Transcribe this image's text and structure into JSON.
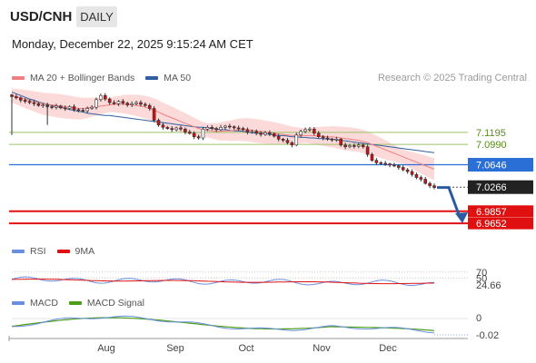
{
  "header": {
    "symbol": "USD/CNH",
    "timeframe": "DAILY",
    "datetime": "Monday, December 22, 2025 9:15:24 AM CET",
    "credit": "Research © 2025 Trading Central"
  },
  "legends": {
    "price": [
      {
        "label": "MA 20 + Bollinger Bands",
        "color": "#f08080"
      },
      {
        "label": "MA 50",
        "color": "#2f5fa0"
      }
    ],
    "rsi": [
      {
        "label": "RSI",
        "color": "#6b8fe0"
      },
      {
        "label": "9MA",
        "color": "#e01010"
      }
    ],
    "macd": [
      {
        "label": "MACD",
        "color": "#6b8fe0"
      },
      {
        "label": "MACD Signal",
        "color": "#4a9e1a"
      }
    ]
  },
  "colors": {
    "up_candle": "#ffffff",
    "down_candle": "#cc1111",
    "bollinger_fill": "#fcdada",
    "ma20": "#f08080",
    "ma50": "#2f5fa0",
    "resistance_green": "#9dc26a",
    "pivot_blue": "#2a6fd6",
    "support_red": "#e01010",
    "last_price_bg": "#222222",
    "projection_arrow": "#2a5aa0"
  },
  "chart_data": [
    {
      "type": "candlestick",
      "title": "",
      "x_axis_labels": [
        "Aug",
        "Sep",
        "Oct",
        "Nov",
        "Dec"
      ],
      "levels": [
        {
          "value": 7.1195,
          "label": "7.1195",
          "kind": "resistance"
        },
        {
          "value": 7.099,
          "label": "7.0990",
          "kind": "resistance"
        },
        {
          "value": 7.0646,
          "label": "7.0646",
          "kind": "pivot"
        },
        {
          "value": 7.0266,
          "label": "7.0266",
          "kind": "last_price"
        },
        {
          "value": 6.9857,
          "label": "6.9857",
          "kind": "support"
        },
        {
          "value": 6.9652,
          "label": "6.9652",
          "kind": "support"
        }
      ],
      "close_series": [
        7.18,
        7.178,
        7.174,
        7.172,
        7.17,
        7.168,
        7.165,
        7.166,
        7.163,
        7.162,
        7.164,
        7.161,
        7.16,
        7.163,
        7.158,
        7.157,
        7.156,
        7.16,
        7.162,
        7.175,
        7.182,
        7.176,
        7.17,
        7.168,
        7.172,
        7.169,
        7.166,
        7.168,
        7.17,
        7.167,
        7.165,
        7.16,
        7.14,
        7.132,
        7.128,
        7.126,
        7.124,
        7.127,
        7.125,
        7.12,
        7.118,
        7.112,
        7.11,
        7.125,
        7.128,
        7.126,
        7.124,
        7.128,
        7.13,
        7.129,
        7.127,
        7.126,
        7.124,
        7.12,
        7.121,
        7.118,
        7.116,
        7.119,
        7.117,
        7.113,
        7.108,
        7.106,
        7.102,
        7.098,
        7.115,
        7.121,
        7.124,
        7.125,
        7.118,
        7.112,
        7.11,
        7.108,
        7.107,
        7.108,
        7.098,
        7.095,
        7.097,
        7.096,
        7.098,
        7.095,
        7.082,
        7.072,
        7.068,
        7.067,
        7.066,
        7.064,
        7.063,
        7.06,
        7.056,
        7.053,
        7.048,
        7.043,
        7.04,
        7.033,
        7.029,
        7.026
      ],
      "ma50_series": [
        7.188,
        7.185,
        7.182,
        7.179,
        7.176,
        7.174,
        7.171,
        7.169,
        7.167,
        7.165,
        7.163,
        7.162,
        7.16,
        7.158,
        7.157,
        7.155,
        7.154,
        7.152,
        7.151,
        7.15,
        7.149,
        7.148,
        7.148,
        7.147,
        7.146,
        7.145,
        7.144,
        7.143,
        7.142,
        7.141,
        7.14,
        7.139,
        7.138,
        7.137,
        7.136,
        7.135,
        7.134,
        7.133,
        7.132,
        7.131,
        7.13,
        7.129,
        7.128,
        7.128,
        7.127,
        7.126,
        7.125,
        7.124,
        7.124,
        7.123,
        7.122,
        7.122,
        7.121,
        7.12,
        7.119,
        7.118,
        7.118,
        7.117,
        7.116,
        7.115,
        7.114,
        7.114,
        7.113,
        7.112,
        7.112,
        7.111,
        7.111,
        7.11,
        7.11,
        7.109,
        7.109,
        7.108,
        7.108,
        7.107,
        7.106,
        7.105,
        7.104,
        7.103,
        7.102,
        7.101,
        7.1,
        7.099,
        7.098,
        7.097,
        7.096,
        7.095,
        7.094,
        7.093,
        7.092,
        7.091,
        7.09,
        7.089,
        7.088,
        7.087,
        7.086,
        7.085
      ],
      "ma20_series": [
        7.182,
        7.18,
        7.178,
        7.176,
        7.174,
        7.172,
        7.17,
        7.168,
        7.167,
        7.166,
        7.165,
        7.164,
        7.163,
        7.162,
        7.161,
        7.16,
        7.16,
        7.161,
        7.162,
        7.163,
        7.164,
        7.165,
        7.166,
        7.167,
        7.167,
        7.167,
        7.167,
        7.166,
        7.165,
        7.164,
        7.162,
        7.16,
        7.157,
        7.154,
        7.15,
        7.147,
        7.144,
        7.141,
        7.138,
        7.135,
        7.132,
        7.129,
        7.126,
        7.124,
        7.123,
        7.122,
        7.121,
        7.121,
        7.122,
        7.122,
        7.123,
        7.124,
        7.124,
        7.124,
        7.123,
        7.122,
        7.121,
        7.12,
        7.119,
        7.118,
        7.117,
        7.116,
        7.115,
        7.114,
        7.114,
        7.114,
        7.114,
        7.114,
        7.114,
        7.113,
        7.113,
        7.112,
        7.112,
        7.111,
        7.11,
        7.109,
        7.108,
        7.107,
        7.106,
        7.104,
        7.102,
        7.099,
        7.096,
        7.093,
        7.09,
        7.087,
        7.084,
        7.081,
        7.078,
        7.075,
        7.072,
        7.069,
        7.066,
        7.063,
        7.06,
        7.057
      ]
    },
    {
      "type": "line",
      "title": "RSI",
      "levels": [
        {
          "value": 70,
          "label": "70"
        },
        {
          "value": 50,
          "label": "50"
        }
      ],
      "last_value_label": "24.66",
      "ylim": [
        0,
        100
      ]
    },
    {
      "type": "line",
      "title": "MACD",
      "levels": [
        {
          "value": 0,
          "label": "0"
        }
      ],
      "last_value_label": "-0.02"
    }
  ]
}
